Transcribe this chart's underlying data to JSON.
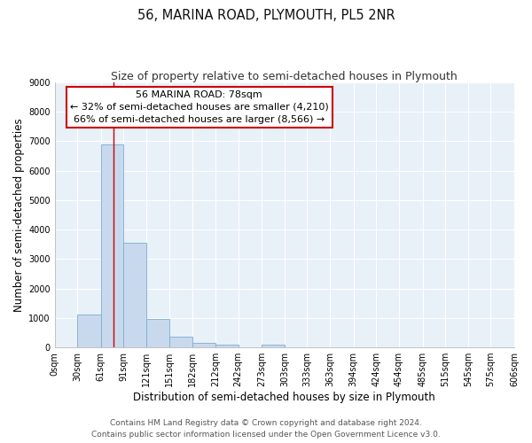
{
  "title": "56, MARINA ROAD, PLYMOUTH, PL5 2NR",
  "subtitle": "Size of property relative to semi-detached houses in Plymouth",
  "xlabel": "Distribution of semi-detached houses by size in Plymouth",
  "ylabel": "Number of semi-detached properties",
  "bar_edges": [
    0,
    30,
    61,
    91,
    121,
    151,
    182,
    212,
    242,
    273,
    303,
    333,
    363,
    394,
    424,
    454,
    485,
    515,
    545,
    575,
    606
  ],
  "bar_heights": [
    0,
    1130,
    6880,
    3560,
    980,
    350,
    140,
    100,
    0,
    100,
    0,
    0,
    0,
    0,
    0,
    0,
    0,
    0,
    0,
    0
  ],
  "bar_color": "#c9d9ed",
  "bar_edgecolor": "#7aaed0",
  "property_value": 78,
  "vline_color": "#cc0000",
  "annotation_title": "56 MARINA ROAD: 78sqm",
  "annotation_line1": "← 32% of semi-detached houses are smaller (4,210)",
  "annotation_line2": "66% of semi-detached houses are larger (8,566) →",
  "annotation_box_edgecolor": "#cc0000",
  "ylim": [
    0,
    9000
  ],
  "yticks": [
    0,
    1000,
    2000,
    3000,
    4000,
    5000,
    6000,
    7000,
    8000,
    9000
  ],
  "xtick_labels": [
    "0sqm",
    "30sqm",
    "61sqm",
    "91sqm",
    "121sqm",
    "151sqm",
    "182sqm",
    "212sqm",
    "242sqm",
    "273sqm",
    "303sqm",
    "333sqm",
    "363sqm",
    "394sqm",
    "424sqm",
    "454sqm",
    "485sqm",
    "515sqm",
    "545sqm",
    "575sqm",
    "606sqm"
  ],
  "footer_line1": "Contains HM Land Registry data © Crown copyright and database right 2024.",
  "footer_line2": "Contains public sector information licensed under the Open Government Licence v3.0.",
  "fig_bg_color": "#ffffff",
  "plot_bg_color": "#e8f0f8",
  "grid_color": "#ffffff",
  "title_fontsize": 10.5,
  "subtitle_fontsize": 9,
  "axis_label_fontsize": 8.5,
  "tick_fontsize": 7,
  "annotation_fontsize": 8,
  "footer_fontsize": 6.5
}
